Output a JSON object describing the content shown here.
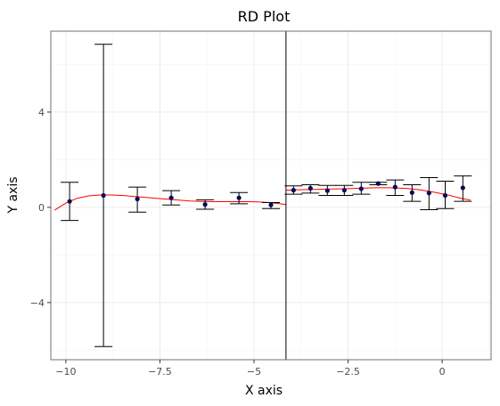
{
  "chart_data": {
    "type": "scatter",
    "title": "RD Plot",
    "xlabel": "X axis",
    "ylabel": "Y axis",
    "xlim": [
      -10.4,
      1.3
    ],
    "ylim": [
      -6.4,
      7.4
    ],
    "x_ticks": [
      -10,
      -7.5,
      -5,
      -2.5,
      0
    ],
    "x_tick_labels": [
      "−10",
      "−7.5",
      "−5",
      "−2.5",
      "0"
    ],
    "y_ticks": [
      -4,
      0,
      4
    ],
    "y_tick_labels": [
      "−4",
      "0",
      "4"
    ],
    "grid": true,
    "cutoff": -4.15,
    "colors": {
      "points": "#0a0a5a",
      "fit": "#ff0000",
      "error_bars": "#000000",
      "cutoff": "#000000"
    },
    "points": [
      {
        "x": -9.9,
        "y": 0.25,
        "lo": -0.55,
        "hi": 1.05
      },
      {
        "x": -9.0,
        "y": 0.5,
        "lo": -5.85,
        "hi": 6.85
      },
      {
        "x": -8.1,
        "y": 0.35,
        "lo": -0.2,
        "hi": 0.85
      },
      {
        "x": -7.2,
        "y": 0.4,
        "lo": 0.1,
        "hi": 0.7
      },
      {
        "x": -6.3,
        "y": 0.12,
        "lo": -0.08,
        "hi": 0.32
      },
      {
        "x": -5.4,
        "y": 0.4,
        "lo": 0.15,
        "hi": 0.62
      },
      {
        "x": -4.55,
        "y": 0.1,
        "lo": -0.05,
        "hi": 0.2
      },
      {
        "x": -3.95,
        "y": 0.72,
        "lo": 0.55,
        "hi": 0.9
      },
      {
        "x": -3.5,
        "y": 0.8,
        "lo": 0.6,
        "hi": 0.95
      },
      {
        "x": -3.05,
        "y": 0.7,
        "lo": 0.5,
        "hi": 0.92
      },
      {
        "x": -2.6,
        "y": 0.72,
        "lo": 0.5,
        "hi": 0.92
      },
      {
        "x": -2.15,
        "y": 0.78,
        "lo": 0.55,
        "hi": 1.05
      },
      {
        "x": -1.7,
        "y": 1.0,
        "lo": 0.95,
        "hi": 1.05
      },
      {
        "x": -1.25,
        "y": 0.85,
        "lo": 0.5,
        "hi": 1.15
      },
      {
        "x": -0.8,
        "y": 0.62,
        "lo": 0.25,
        "hi": 0.95
      },
      {
        "x": -0.35,
        "y": 0.6,
        "lo": -0.1,
        "hi": 1.25
      },
      {
        "x": 0.08,
        "y": 0.5,
        "lo": -0.05,
        "hi": 1.1
      },
      {
        "x": 0.55,
        "y": 0.82,
        "lo": 0.25,
        "hi": 1.32
      }
    ],
    "fit_left": {
      "x": [
        -10.3,
        -10.0,
        -9.7,
        -9.4,
        -9.1,
        -8.8,
        -8.5,
        -8.2,
        -7.9,
        -7.6,
        -7.3,
        -7.0,
        -6.7,
        -6.4,
        -6.1,
        -5.8,
        -5.5,
        -5.2,
        -4.9,
        -4.6,
        -4.3,
        -4.15
      ],
      "y": [
        -0.12,
        0.18,
        0.38,
        0.48,
        0.52,
        0.52,
        0.5,
        0.46,
        0.42,
        0.38,
        0.34,
        0.3,
        0.27,
        0.25,
        0.24,
        0.24,
        0.24,
        0.24,
        0.23,
        0.2,
        0.15,
        0.12
      ]
    },
    "fit_right": {
      "x": [
        -4.15,
        -3.8,
        -3.4,
        -3.0,
        -2.6,
        -2.2,
        -1.8,
        -1.4,
        -1.0,
        -0.6,
        -0.2,
        0.2,
        0.5,
        0.75
      ],
      "y": [
        0.72,
        0.74,
        0.75,
        0.77,
        0.78,
        0.8,
        0.82,
        0.82,
        0.8,
        0.74,
        0.63,
        0.5,
        0.38,
        0.3
      ]
    }
  }
}
